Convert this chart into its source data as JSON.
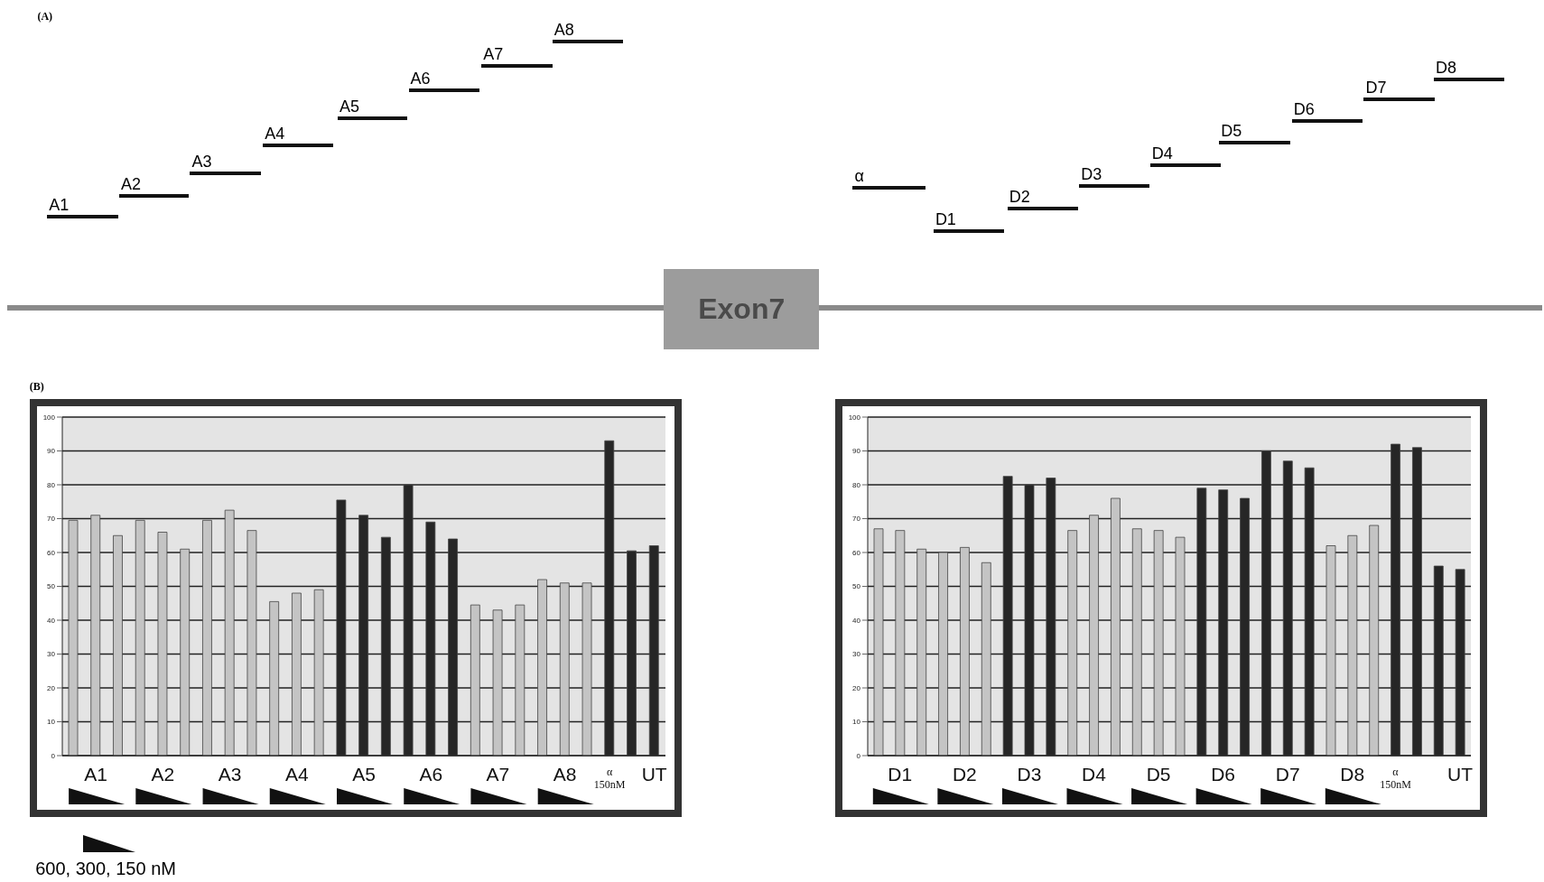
{
  "chart_data": [
    {
      "type": "other",
      "title": "(A)",
      "annotations": [
        "A1",
        "A2",
        "A3",
        "A4",
        "A5",
        "A6",
        "A7",
        "A8",
        "α",
        "D1",
        "D2",
        "D3",
        "D4",
        "D5",
        "D6",
        "D7",
        "D8",
        "Exon7"
      ]
    },
    {
      "type": "bar",
      "title": "(B)",
      "annotations": [
        "600, 300, 150 nM"
      ],
      "categories": [
        null,
        "A1",
        null,
        null,
        "A2",
        null,
        null,
        "A3",
        null,
        null,
        "A4",
        null,
        null,
        "A5",
        null,
        null,
        "A6",
        null,
        null,
        "A7",
        null,
        null,
        "A8",
        null,
        "α\n150nM",
        null,
        "UT"
      ],
      "values": [
        69.5,
        71,
        65,
        69.5,
        66,
        61,
        69.5,
        72.5,
        66.5,
        45.5,
        48,
        49,
        75.5,
        71,
        64.5,
        80,
        69,
        64,
        44.5,
        43,
        44.5,
        52,
        51,
        51,
        93,
        60.5,
        62
      ],
      "colors": [
        "#c4c4c4",
        "#c4c4c4",
        "#c4c4c4",
        "#c4c4c4",
        "#c4c4c4",
        "#c4c4c4",
        "#c4c4c4",
        "#c4c4c4",
        "#c4c4c4",
        "#c4c4c4",
        "#c4c4c4",
        "#c4c4c4",
        "#262626",
        "#262626",
        "#262626",
        "#262626",
        "#262626",
        "#262626",
        "#c4c4c4",
        "#c4c4c4",
        "#c4c4c4",
        "#c4c4c4",
        "#c4c4c4",
        "#c4c4c4",
        "#262626",
        "#262626",
        "#262626"
      ],
      "ylim": [
        0,
        100
      ],
      "yticks": [
        0,
        10,
        20,
        30,
        40,
        50,
        60,
        70,
        80,
        90,
        100
      ],
      "grid": "y"
    },
    {
      "type": "bar",
      "categories": [
        null,
        "D1",
        null,
        null,
        "D2",
        null,
        null,
        "D3",
        null,
        null,
        "D4",
        null,
        null,
        "D5",
        null,
        null,
        "D6",
        null,
        null,
        "D7",
        null,
        null,
        "D8",
        null,
        "α\n150nM",
        null,
        null,
        "UT"
      ],
      "values": [
        67,
        66.5,
        61,
        60,
        61.5,
        57,
        82.5,
        80,
        82,
        66.5,
        71,
        76,
        67,
        66.5,
        64.5,
        79,
        78.5,
        76,
        90,
        87,
        85,
        62,
        65,
        68,
        92,
        91,
        56,
        55
      ],
      "colors": [
        "#c4c4c4",
        "#c4c4c4",
        "#c4c4c4",
        "#c4c4c4",
        "#c4c4c4",
        "#c4c4c4",
        "#262626",
        "#262626",
        "#262626",
        "#c4c4c4",
        "#c4c4c4",
        "#c4c4c4",
        "#c4c4c4",
        "#c4c4c4",
        "#c4c4c4",
        "#262626",
        "#262626",
        "#262626",
        "#262626",
        "#262626",
        "#262626",
        "#c4c4c4",
        "#c4c4c4",
        "#c4c4c4",
        "#262626",
        "#262626",
        "#262626",
        "#262626"
      ],
      "ylim": [
        0,
        100
      ],
      "yticks": [
        0,
        10,
        20,
        30,
        40,
        50,
        60,
        70,
        80,
        90,
        100
      ],
      "grid": "y"
    }
  ]
}
